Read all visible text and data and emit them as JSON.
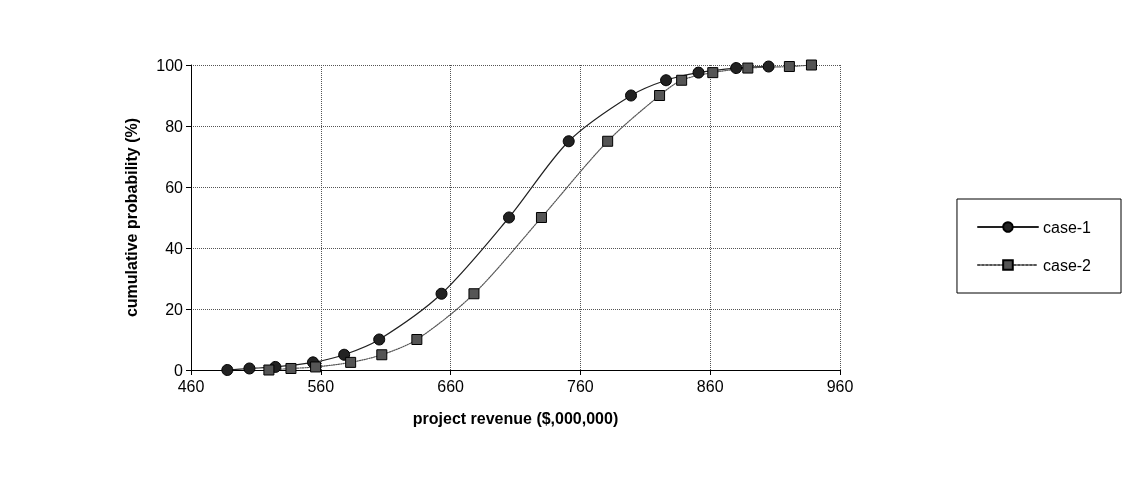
{
  "chart_data": {
    "type": "line",
    "xlabel": "project revenue ($,000,000)",
    "ylabel": "cumulative probability (%)",
    "xlim": [
      460,
      960
    ],
    "xticks": [
      460,
      560,
      660,
      760,
      860,
      960
    ],
    "ylim": [
      0,
      100
    ],
    "yticks": [
      0,
      20,
      40,
      60,
      80,
      100
    ],
    "grid": true,
    "legend": "right",
    "series": [
      {
        "name": "case-1",
        "color": "#222222",
        "marker": "circle",
        "line_style": "solid",
        "x": [
          488,
          505,
          525,
          554,
          578,
          605,
          653,
          705,
          751,
          799,
          826,
          851,
          880,
          905
        ],
        "values": [
          0,
          0.5,
          1,
          2.5,
          5,
          10,
          25,
          50,
          75,
          90,
          95,
          97.5,
          99,
          99.5
        ]
      },
      {
        "name": "case-2",
        "color": "#555555",
        "marker": "square",
        "line_style": "dotted",
        "x": [
          520,
          537,
          556,
          583,
          607,
          634,
          678,
          730,
          781,
          821,
          838,
          862,
          889,
          921,
          938
        ],
        "values": [
          0,
          0.5,
          1,
          2.5,
          5,
          10,
          25,
          50,
          75,
          90,
          95,
          97.5,
          99,
          99.5,
          100
        ]
      }
    ]
  }
}
